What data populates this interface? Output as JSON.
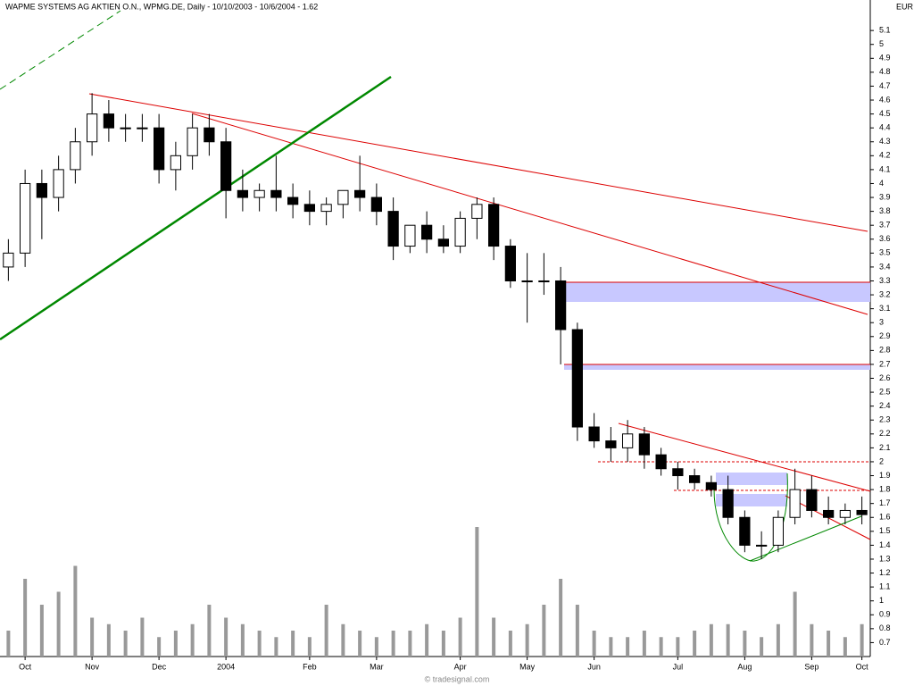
{
  "chart_data": {
    "type": "candlestick",
    "title": "WAPME SYSTEMS AG AKTIEN O.N., WPMG.DE, Daily - 10/10/2003 - 10/6/2004 - 1.62",
    "y_unit": "EUR",
    "footer": "© tradesignal.com",
    "categories": [
      null,
      "Oct",
      null,
      null,
      null,
      "Nov",
      null,
      null,
      null,
      "Dec",
      null,
      null,
      null,
      "2004",
      null,
      null,
      null,
      null,
      "Feb",
      null,
      null,
      null,
      "Mar",
      null,
      null,
      null,
      null,
      "Apr",
      null,
      null,
      null,
      "May",
      null,
      null,
      null,
      "Jun",
      null,
      null,
      null,
      null,
      "Jul",
      null,
      null,
      null,
      "Aug",
      null,
      null,
      null,
      "Sep",
      null,
      null,
      "Oct"
    ],
    "open": [
      3.4,
      3.5,
      4.0,
      3.9,
      4.1,
      4.3,
      4.5,
      4.4,
      4.4,
      4.4,
      4.1,
      4.2,
      4.4,
      4.3,
      3.95,
      3.9,
      3.95,
      3.9,
      3.85,
      3.8,
      3.85,
      3.95,
      3.9,
      3.8,
      3.55,
      3.7,
      3.6,
      3.55,
      3.75,
      3.85,
      3.55,
      3.3,
      3.3,
      3.3,
      2.95,
      2.25,
      2.15,
      2.1,
      2.2,
      2.05,
      1.95,
      1.9,
      1.85,
      1.8,
      1.6,
      1.4,
      1.4,
      1.6,
      1.8,
      1.65,
      1.6,
      1.65
    ],
    "high": [
      3.6,
      4.1,
      4.1,
      4.2,
      4.4,
      4.65,
      4.6,
      4.5,
      4.5,
      4.5,
      4.3,
      4.5,
      4.5,
      4.4,
      4.1,
      4.0,
      4.2,
      4.0,
      3.95,
      3.9,
      3.95,
      4.2,
      4.0,
      3.9,
      3.7,
      3.8,
      3.7,
      3.8,
      3.9,
      3.9,
      3.6,
      3.5,
      3.5,
      3.4,
      3.0,
      2.35,
      2.25,
      2.3,
      2.25,
      2.1,
      2.0,
      1.95,
      1.9,
      1.9,
      1.65,
      1.5,
      1.65,
      1.95,
      1.9,
      1.75,
      1.7,
      1.75
    ],
    "low": [
      3.3,
      3.4,
      3.6,
      3.8,
      4.0,
      4.2,
      4.3,
      4.3,
      4.3,
      4.0,
      3.95,
      4.1,
      4.2,
      3.75,
      3.8,
      3.8,
      3.8,
      3.75,
      3.7,
      3.7,
      3.75,
      3.8,
      3.7,
      3.45,
      3.5,
      3.5,
      3.5,
      3.5,
      3.6,
      3.45,
      3.25,
      3.0,
      3.2,
      2.7,
      2.15,
      2.1,
      2.0,
      2.0,
      1.95,
      1.9,
      1.8,
      1.8,
      1.75,
      1.55,
      1.35,
      1.3,
      1.35,
      1.55,
      1.6,
      1.55,
      1.55,
      1.55
    ],
    "close": [
      3.5,
      4.0,
      3.9,
      4.1,
      4.3,
      4.5,
      4.4,
      4.4,
      4.4,
      4.1,
      4.2,
      4.4,
      4.3,
      3.95,
      3.9,
      3.95,
      3.9,
      3.85,
      3.8,
      3.85,
      3.95,
      3.9,
      3.8,
      3.55,
      3.7,
      3.6,
      3.55,
      3.75,
      3.85,
      3.55,
      3.3,
      3.3,
      3.3,
      2.95,
      2.25,
      2.15,
      2.1,
      2.2,
      2.05,
      1.95,
      1.9,
      1.85,
      1.8,
      1.6,
      1.4,
      1.4,
      1.6,
      1.8,
      1.65,
      1.6,
      1.65,
      1.62
    ],
    "volume": [
      20,
      60,
      40,
      50,
      70,
      30,
      25,
      20,
      30,
      15,
      20,
      25,
      40,
      30,
      25,
      20,
      15,
      20,
      15,
      40,
      25,
      20,
      15,
      20,
      20,
      25,
      20,
      30,
      100,
      30,
      20,
      25,
      40,
      60,
      40,
      20,
      15,
      15,
      20,
      15,
      15,
      20,
      25,
      25,
      20,
      15,
      25,
      50,
      25,
      20,
      15,
      25
    ],
    "ylim": [
      0.6,
      5.3
    ],
    "yticks": [
      0.7,
      0.8,
      0.9,
      1,
      1.1,
      1.2,
      1.3,
      1.4,
      1.5,
      1.6,
      1.7,
      1.8,
      1.9,
      2,
      2.1,
      2.2,
      2.3,
      2.4,
      2.5,
      2.6,
      2.7,
      2.8,
      2.9,
      3,
      3.1,
      3.2,
      3.3,
      3.4,
      3.5,
      3.6,
      3.7,
      3.8,
      3.9,
      4,
      4.1,
      4.2,
      4.3,
      4.4,
      4.5,
      4.6,
      4.7,
      4.8,
      4.9,
      5,
      5.1
    ]
  }
}
